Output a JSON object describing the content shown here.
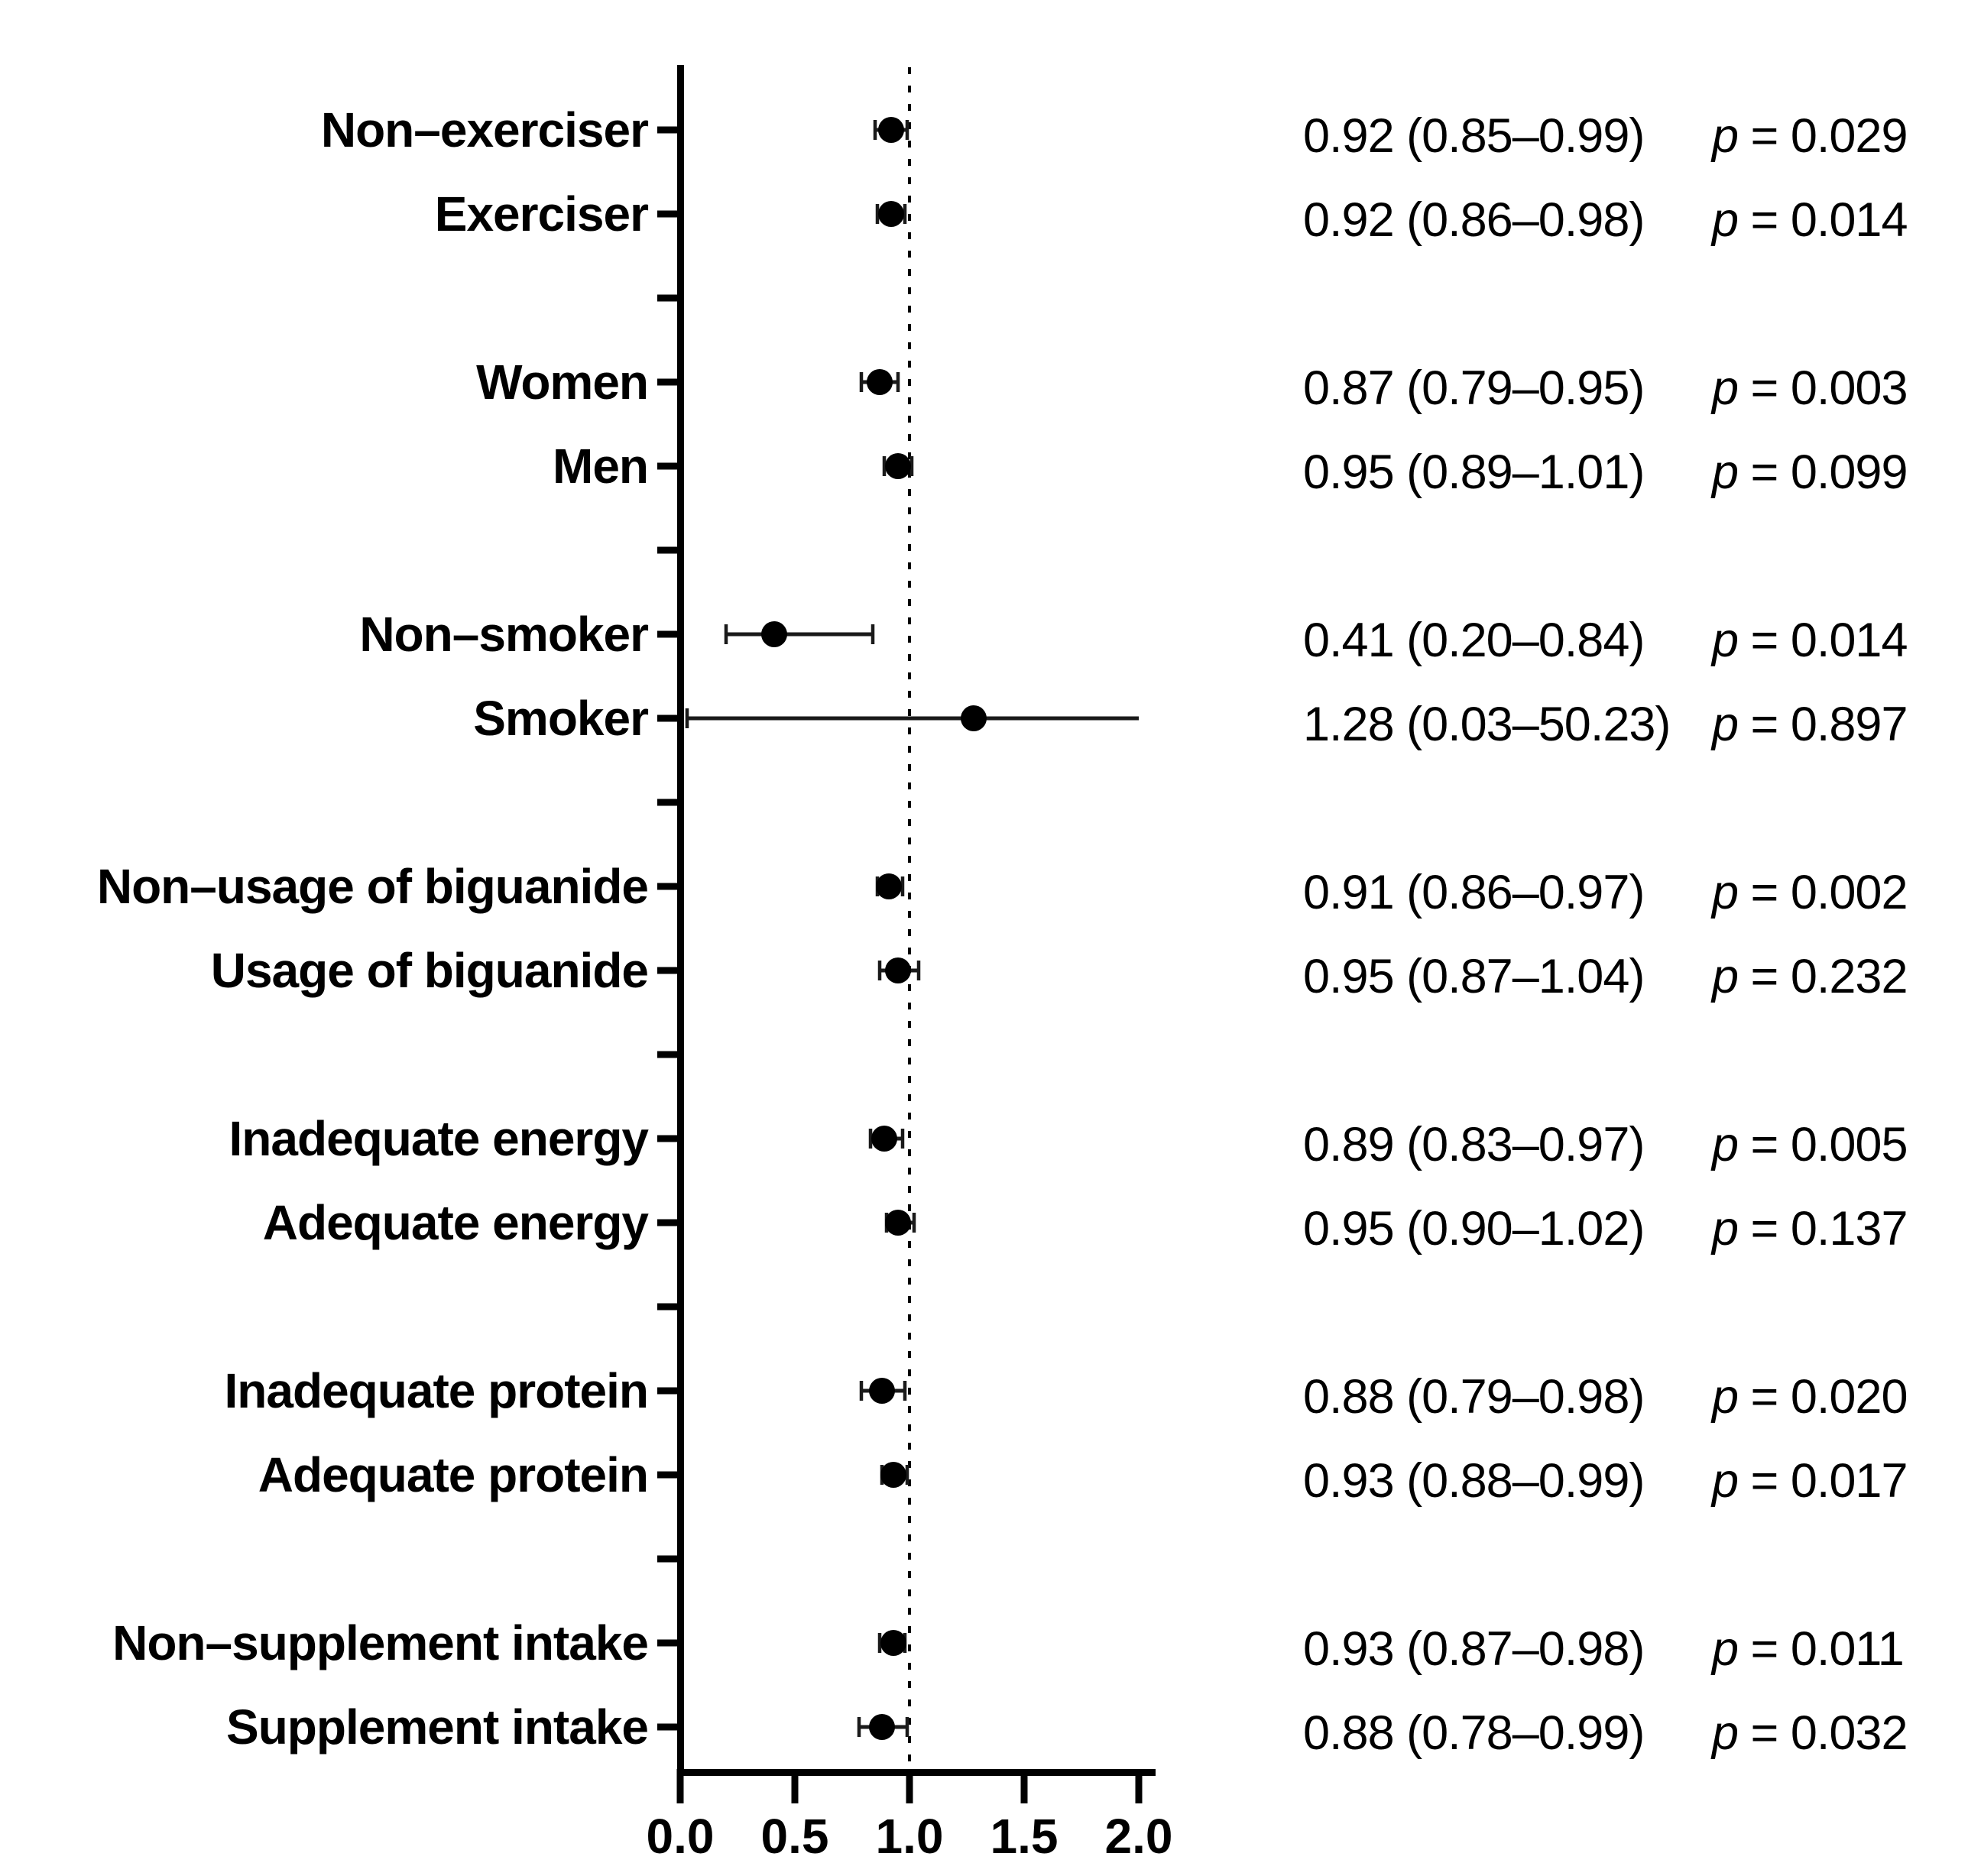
{
  "figure": {
    "background_color": "#ffffff",
    "ink_color": "#000000",
    "error_bar_color": "#1a1a1a"
  },
  "chart_data": {
    "type": "scatter",
    "subtype": "forest-plot",
    "x_range": [
      0,
      2
    ],
    "x_ticks": [
      {
        "value": 0,
        "label": "0.0"
      },
      {
        "value": 0.5,
        "label": "0.5"
      },
      {
        "value": 1,
        "label": "1.0"
      },
      {
        "value": 1.5,
        "label": "1.5"
      },
      {
        "value": 2,
        "label": "2.0"
      }
    ],
    "reference_line_value": 1.0,
    "grid": false,
    "legend": false,
    "groups": [
      [
        {
          "label": "Non–exerciser",
          "estimate": 0.92,
          "ci_low": 0.85,
          "ci_high": 0.99,
          "estimate_text": "0.92 (0.85–0.99)",
          "p_prefix": "p",
          "p_eq": " = ",
          "p_value": "0.029"
        },
        {
          "label": "Exerciser",
          "estimate": 0.92,
          "ci_low": 0.86,
          "ci_high": 0.98,
          "estimate_text": "0.92 (0.86–0.98)",
          "p_prefix": "p",
          "p_eq": " = ",
          "p_value": "0.014"
        }
      ],
      [
        {
          "label": "Women",
          "estimate": 0.87,
          "ci_low": 0.79,
          "ci_high": 0.95,
          "estimate_text": "0.87 (0.79–0.95)",
          "p_prefix": "p",
          "p_eq": " = ",
          "p_value": "0.003"
        },
        {
          "label": "Men",
          "estimate": 0.95,
          "ci_low": 0.89,
          "ci_high": 1.01,
          "estimate_text": "0.95 (0.89–1.01)",
          "p_prefix": "p",
          "p_eq": " = ",
          "p_value": "0.099"
        }
      ],
      [
        {
          "label": "Non–smoker",
          "estimate": 0.41,
          "ci_low": 0.2,
          "ci_high": 0.84,
          "estimate_text": "0.41 (0.20–0.84)",
          "p_prefix": "p",
          "p_eq": " = ",
          "p_value": "0.014"
        },
        {
          "label": "Smoker",
          "estimate": 1.28,
          "ci_low": 0.03,
          "ci_high": 50.23,
          "estimate_text": "1.28 (0.03–50.23)",
          "p_prefix": "p",
          "p_eq": " = ",
          "p_value": "0.897"
        }
      ],
      [
        {
          "label": "Non–usage of biguanide",
          "estimate": 0.91,
          "ci_low": 0.86,
          "ci_high": 0.97,
          "estimate_text": "0.91 (0.86–0.97)",
          "p_prefix": "p",
          "p_eq": " = ",
          "p_value": "0.002"
        },
        {
          "label": "Usage of biguanide",
          "estimate": 0.95,
          "ci_low": 0.87,
          "ci_high": 1.04,
          "estimate_text": "0.95 (0.87–1.04)",
          "p_prefix": "p",
          "p_eq": " = ",
          "p_value": "0.232"
        }
      ],
      [
        {
          "label": "Inadequate energy",
          "estimate": 0.89,
          "ci_low": 0.83,
          "ci_high": 0.97,
          "estimate_text": "0.89 (0.83–0.97)",
          "p_prefix": "p",
          "p_eq": " = ",
          "p_value": "0.005"
        },
        {
          "label": "Adequate energy",
          "estimate": 0.95,
          "ci_low": 0.9,
          "ci_high": 1.02,
          "estimate_text": "0.95 (0.90–1.02)",
          "p_prefix": "p",
          "p_eq": " = ",
          "p_value": "0.137"
        }
      ],
      [
        {
          "label": "Inadequate protein",
          "estimate": 0.88,
          "ci_low": 0.79,
          "ci_high": 0.98,
          "estimate_text": "0.88 (0.79–0.98)",
          "p_prefix": "p",
          "p_eq": " = ",
          "p_value": "0.020"
        },
        {
          "label": "Adequate protein",
          "estimate": 0.93,
          "ci_low": 0.88,
          "ci_high": 0.99,
          "estimate_text": "0.93 (0.88–0.99)",
          "p_prefix": "p",
          "p_eq": " = ",
          "p_value": "0.017"
        }
      ],
      [
        {
          "label": "Non–supplement intake",
          "estimate": 0.93,
          "ci_low": 0.87,
          "ci_high": 0.98,
          "estimate_text": "0.93 (0.87–0.98)",
          "p_prefix": "p",
          "p_eq": " = ",
          "p_value": "0.011"
        },
        {
          "label": "Supplement intake",
          "estimate": 0.88,
          "ci_low": 0.78,
          "ci_high": 0.99,
          "estimate_text": "0.88 (0.78–0.99)",
          "p_prefix": "p",
          "p_eq": " = ",
          "p_value": "0.032"
        }
      ]
    ]
  }
}
